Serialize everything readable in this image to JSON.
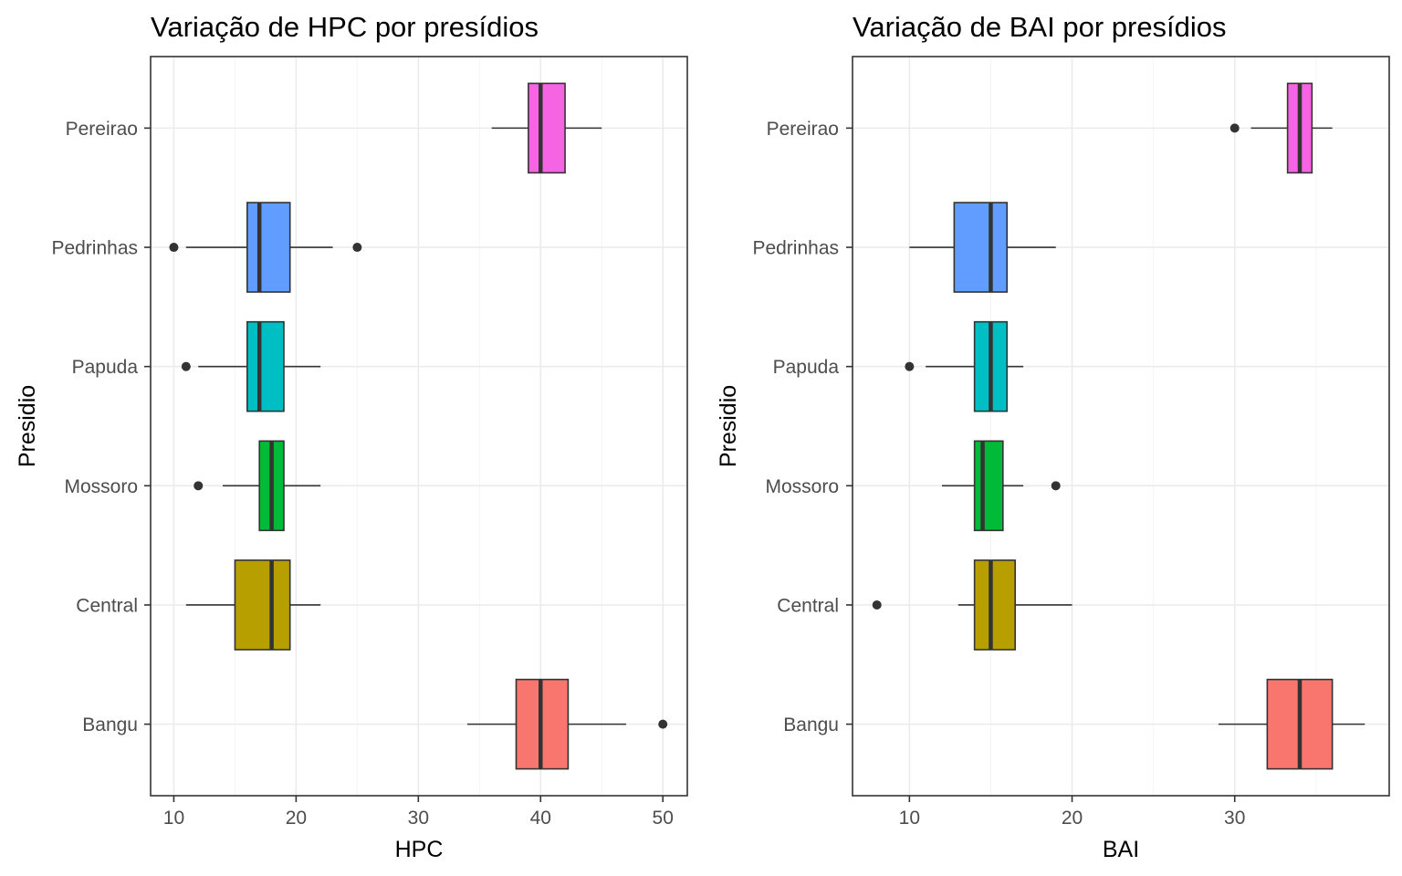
{
  "chart_data": [
    {
      "type": "boxplot",
      "title": "Variação de HPC por presídios",
      "xlabel": "HPC",
      "ylabel": "Presidio",
      "orientation": "horizontal",
      "xlim": [
        8.1,
        52.0
      ],
      "x_ticks": [
        10,
        20,
        30,
        40,
        50
      ],
      "grid": true,
      "legend": "none",
      "categories": [
        "Bangu",
        "Central",
        "Mossoro",
        "Papuda",
        "Pedrinhas",
        "Pereirao"
      ],
      "series": [
        {
          "category": "Bangu",
          "color": "#F8766D",
          "whisker_low": 34,
          "q1": 38,
          "median": 40,
          "q3": 42.25,
          "whisker_high": 47,
          "outliers": [
            50
          ]
        },
        {
          "category": "Central",
          "color": "#B79F00",
          "whisker_low": 11,
          "q1": 15,
          "median": 18,
          "q3": 19.5,
          "whisker_high": 22,
          "outliers": []
        },
        {
          "category": "Mossoro",
          "color": "#00BA38",
          "whisker_low": 14,
          "q1": 17,
          "median": 18,
          "q3": 19,
          "whisker_high": 22,
          "outliers": [
            12
          ]
        },
        {
          "category": "Papuda",
          "color": "#00BFC4",
          "whisker_low": 12,
          "q1": 16,
          "median": 17,
          "q3": 19,
          "whisker_high": 22,
          "outliers": [
            11
          ]
        },
        {
          "category": "Pedrinhas",
          "color": "#619CFF",
          "whisker_low": 11,
          "q1": 16,
          "median": 17,
          "q3": 19.5,
          "whisker_high": 23,
          "outliers": [
            10,
            25
          ]
        },
        {
          "category": "Pereirao",
          "color": "#F564E3",
          "whisker_low": 36,
          "q1": 39,
          "median": 40,
          "q3": 42,
          "whisker_high": 45,
          "outliers": []
        }
      ]
    },
    {
      "type": "boxplot",
      "title": "Variação de BAI por presídios",
      "xlabel": "BAI",
      "ylabel": "Presidio",
      "orientation": "horizontal",
      "xlim": [
        6.5,
        39.5
      ],
      "x_ticks": [
        10,
        20,
        30
      ],
      "grid": true,
      "legend": "none",
      "categories": [
        "Bangu",
        "Central",
        "Mossoro",
        "Papuda",
        "Pedrinhas",
        "Pereirao"
      ],
      "series": [
        {
          "category": "Bangu",
          "color": "#F8766D",
          "whisker_low": 29,
          "q1": 32,
          "median": 34,
          "q3": 36,
          "whisker_high": 38,
          "outliers": []
        },
        {
          "category": "Central",
          "color": "#B79F00",
          "whisker_low": 13,
          "q1": 14,
          "median": 15,
          "q3": 16.5,
          "whisker_high": 20,
          "outliers": [
            8
          ]
        },
        {
          "category": "Mossoro",
          "color": "#00BA38",
          "whisker_low": 12,
          "q1": 14,
          "median": 14.5,
          "q3": 15.75,
          "whisker_high": 17,
          "outliers": [
            19
          ]
        },
        {
          "category": "Papuda",
          "color": "#00BFC4",
          "whisker_low": 11,
          "q1": 14,
          "median": 15,
          "q3": 16,
          "whisker_high": 17,
          "outliers": [
            10
          ]
        },
        {
          "category": "Pedrinhas",
          "color": "#619CFF",
          "whisker_low": 10,
          "q1": 12.75,
          "median": 15,
          "q3": 16,
          "whisker_high": 19,
          "outliers": []
        },
        {
          "category": "Pereirao",
          "color": "#F564E3",
          "whisker_low": 31,
          "q1": 33.25,
          "median": 34,
          "q3": 34.75,
          "whisker_high": 36,
          "outliers": [
            30
          ]
        }
      ]
    }
  ]
}
